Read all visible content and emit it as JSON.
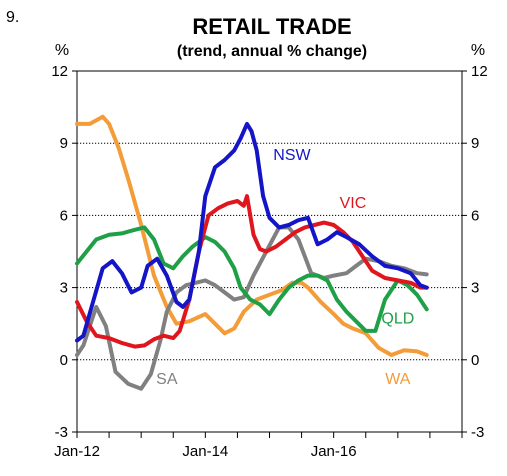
{
  "figure_number": "9.",
  "chart_data": {
    "type": "line",
    "title": "RETAIL TRADE",
    "subtitle": "(trend, annual % change)",
    "ylabel_left": "%",
    "ylabel_right": "%",
    "ylim": [
      -3,
      12
    ],
    "yticks": [
      -3,
      0,
      3,
      6,
      9,
      12
    ],
    "ytick_labels": [
      "-3",
      "0",
      "3",
      "6",
      "9",
      "12"
    ],
    "xlim": [
      2012.0,
      2018.0
    ],
    "xticks": [
      2012.0,
      2014.0,
      2016.0
    ],
    "xtick_labels": [
      "Jan-12",
      "Jan-14",
      "Jan-16"
    ],
    "grid": "horizontal dotted",
    "legend": "inline labels",
    "series": [
      {
        "name": "WA",
        "color": "#f39c38",
        "x": [
          2012.0,
          2012.2,
          2012.4,
          2012.5,
          2012.65,
          2012.8,
          2013.0,
          2013.2,
          2013.4,
          2013.55,
          2013.75,
          2014.0,
          2014.15,
          2014.3,
          2014.45,
          2014.6,
          2014.8,
          2015.0,
          2015.2,
          2015.35,
          2015.5,
          2015.6,
          2015.8,
          2016.0,
          2016.15,
          2016.3,
          2016.5,
          2016.7,
          2016.9,
          2017.1,
          2017.3,
          2017.45
        ],
        "y": [
          9.8,
          9.8,
          10.1,
          9.8,
          8.8,
          7.5,
          5.6,
          3.5,
          2.2,
          1.5,
          1.6,
          1.9,
          1.5,
          1.1,
          1.3,
          2.0,
          2.5,
          2.7,
          2.9,
          3.2,
          3.2,
          3.0,
          2.4,
          1.9,
          1.5,
          1.3,
          1.1,
          0.5,
          0.2,
          0.4,
          0.35,
          0.2
        ]
      },
      {
        "name": "SA",
        "color": "#808080",
        "x": [
          2012.0,
          2012.1,
          2012.3,
          2012.45,
          2012.6,
          2012.8,
          2013.0,
          2013.15,
          2013.3,
          2013.4,
          2013.55,
          2013.7,
          2013.85,
          2014.0,
          2014.15,
          2014.3,
          2014.45,
          2014.6,
          2014.75,
          2014.95,
          2015.15,
          2015.3,
          2015.45,
          2015.65,
          2015.85,
          2016.0,
          2016.2,
          2016.35,
          2016.5,
          2016.7,
          2016.9,
          2017.1,
          2017.3,
          2017.45
        ],
        "y": [
          0.2,
          0.6,
          2.2,
          1.4,
          -0.5,
          -1.0,
          -1.2,
          -0.6,
          0.8,
          2.0,
          2.8,
          3.1,
          3.2,
          3.3,
          3.1,
          2.8,
          2.5,
          2.6,
          3.5,
          4.5,
          5.5,
          5.5,
          5.0,
          3.6,
          3.4,
          3.5,
          3.6,
          3.9,
          4.2,
          4.1,
          3.9,
          3.8,
          3.6,
          3.55
        ]
      },
      {
        "name": "QLD",
        "color": "#1fa047",
        "x": [
          2012.0,
          2012.15,
          2012.3,
          2012.5,
          2012.7,
          2012.9,
          2013.05,
          2013.2,
          2013.35,
          2013.5,
          2013.65,
          2013.8,
          2014.0,
          2014.15,
          2014.3,
          2014.45,
          2014.55,
          2014.7,
          2014.85,
          2015.0,
          2015.15,
          2015.3,
          2015.45,
          2015.6,
          2015.75,
          2015.9,
          2016.05,
          2016.2,
          2016.35,
          2016.5,
          2016.65,
          2016.8,
          2017.0,
          2017.15,
          2017.3,
          2017.45
        ],
        "y": [
          4.0,
          4.5,
          5.0,
          5.2,
          5.25,
          5.4,
          5.5,
          5.0,
          4.0,
          3.8,
          4.3,
          4.7,
          5.1,
          4.9,
          4.5,
          3.8,
          3.0,
          2.5,
          2.3,
          1.9,
          2.5,
          3.0,
          3.3,
          3.5,
          3.5,
          3.3,
          2.5,
          2.0,
          1.6,
          1.2,
          1.2,
          2.5,
          3.3,
          3.1,
          2.7,
          2.1
        ]
      },
      {
        "name": "VIC",
        "color": "#e0161e",
        "x": [
          2012.0,
          2012.15,
          2012.3,
          2012.5,
          2012.7,
          2012.9,
          2013.05,
          2013.2,
          2013.35,
          2013.5,
          2013.6,
          2013.75,
          2013.9,
          2014.05,
          2014.2,
          2014.35,
          2014.5,
          2014.6,
          2014.65,
          2014.75,
          2014.85,
          2014.95,
          2015.1,
          2015.25,
          2015.4,
          2015.55,
          2015.7,
          2015.85,
          2016.0,
          2016.15,
          2016.3,
          2016.45,
          2016.6,
          2016.8,
          2017.0,
          2017.2,
          2017.35,
          2017.45
        ],
        "y": [
          2.4,
          1.6,
          1.0,
          0.9,
          0.7,
          0.55,
          0.6,
          0.85,
          1.0,
          0.9,
          1.2,
          2.5,
          4.5,
          6.0,
          6.3,
          6.5,
          6.6,
          6.4,
          6.8,
          5.2,
          4.6,
          4.5,
          4.7,
          5.0,
          5.3,
          5.5,
          5.6,
          5.7,
          5.6,
          5.3,
          4.9,
          4.3,
          3.7,
          3.4,
          3.3,
          3.2,
          3.0,
          3.0
        ]
      },
      {
        "name": "NSW",
        "color": "#1515c8",
        "x": [
          2012.0,
          2012.1,
          2012.25,
          2012.4,
          2012.55,
          2012.7,
          2012.85,
          2013.0,
          2013.1,
          2013.25,
          2013.4,
          2013.55,
          2013.65,
          2013.75,
          2013.9,
          2014.0,
          2014.15,
          2014.3,
          2014.45,
          2014.55,
          2014.65,
          2014.72,
          2014.8,
          2014.9,
          2015.0,
          2015.15,
          2015.3,
          2015.45,
          2015.6,
          2015.75,
          2015.9,
          2016.05,
          2016.2,
          2016.4,
          2016.6,
          2016.8,
          2017.0,
          2017.2,
          2017.35,
          2017.45
        ],
        "y": [
          0.8,
          1.0,
          2.4,
          3.8,
          4.1,
          3.6,
          2.8,
          3.0,
          3.9,
          4.2,
          3.5,
          2.4,
          2.2,
          2.5,
          4.5,
          6.8,
          8.0,
          8.3,
          8.7,
          9.2,
          9.8,
          9.5,
          8.7,
          6.8,
          5.9,
          5.5,
          5.6,
          5.8,
          5.9,
          4.8,
          5.0,
          5.3,
          5.1,
          4.8,
          4.3,
          3.9,
          3.8,
          3.6,
          3.1,
          3.0
        ]
      }
    ],
    "labels": [
      {
        "text": "NSW",
        "color": "#1515c8",
        "x": 2015.35,
        "y": 8.3
      },
      {
        "text": "VIC",
        "color": "#e0161e",
        "x": 2016.3,
        "y": 6.3
      },
      {
        "text": "QLD",
        "color": "#1fa047",
        "x": 2017.0,
        "y": 1.5
      },
      {
        "text": "SA",
        "color": "#808080",
        "x": 2013.4,
        "y": -1.0
      },
      {
        "text": "WA",
        "color": "#f39c38",
        "x": 2017.0,
        "y": -1.0
      }
    ]
  }
}
